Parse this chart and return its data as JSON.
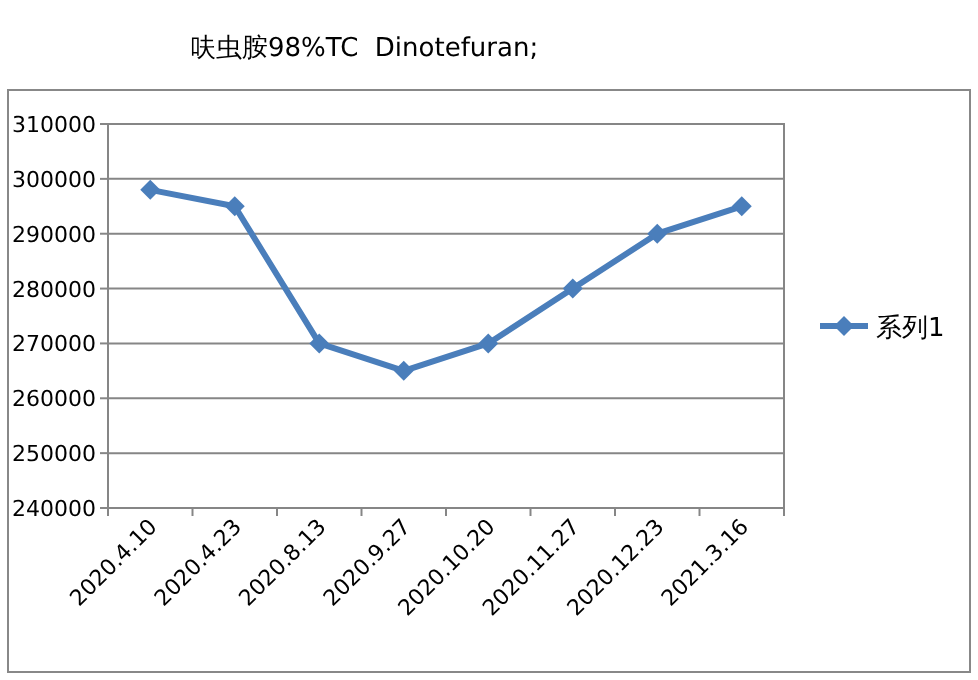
{
  "chart_data": {
    "type": "line",
    "title": "呋虫胺98%TC  Dinotefuran;",
    "categories": [
      "2020.4.10",
      "2020.4.23",
      "2020.8.13",
      "2020.9.27",
      "2020.10.20",
      "2020.11.27",
      "2020.12.23",
      "2021.3.16"
    ],
    "series": [
      {
        "name": "系列1",
        "color": "#4a7ebb",
        "values": [
          298000,
          295000,
          270000,
          265000,
          270000,
          280000,
          290000,
          295000
        ]
      }
    ],
    "ylim": [
      240000,
      310000
    ],
    "yticks": [
      240000,
      250000,
      260000,
      270000,
      280000,
      290000,
      300000,
      310000
    ],
    "grid": "y",
    "legend": "right",
    "marker": "diamond",
    "line_style": "solid"
  }
}
